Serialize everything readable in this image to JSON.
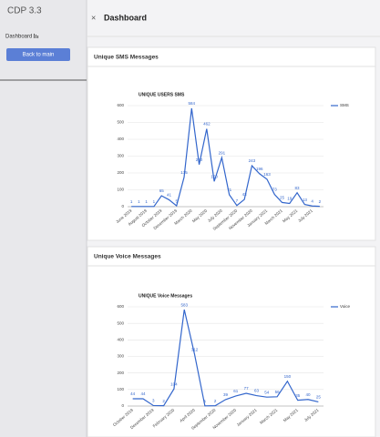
{
  "sidebar": {
    "app_title": "CDP 3.3",
    "nav_item": "Dashboard",
    "button": "Back to main"
  },
  "header": {
    "title": "Dashboard"
  },
  "panels": [
    "Unique SMS Messages",
    "Unique Voice Messages"
  ],
  "chart_data": [
    {
      "type": "line",
      "title": "UNIQUE USERS SMS",
      "categories": [
        "June 2019",
        null,
        "August 2019",
        null,
        "October 2019",
        null,
        "December 2019",
        null,
        "March 2020",
        null,
        "May 2020",
        null,
        "July 2020",
        null,
        "September 2020",
        null,
        "November 2020",
        null,
        "January 2021",
        null,
        "March 2021",
        null,
        "May 2021",
        null,
        "July 2021",
        null
      ],
      "series": [
        {
          "name": "SMS",
          "color": "#3366cc",
          "values": [
            1,
            1,
            1,
            1,
            65,
            41,
            5,
            175,
            584,
            250,
            462,
            150,
            291,
            71,
            7,
            43,
            243,
            196,
            163,
            73,
            25,
            19,
            83,
            13,
            4,
            2
          ]
        }
      ],
      "ylim": [
        0,
        600
      ],
      "yticks": [
        0,
        100,
        200,
        300,
        400,
        500,
        600
      ],
      "grid": true,
      "legend": "right"
    },
    {
      "type": "line",
      "title": "UNIQUE Voice Messages",
      "categories": [
        "October 2019",
        null,
        "December 2019",
        null,
        "February 2020",
        null,
        "April 2020",
        null,
        "September 2020",
        null,
        "November 2020",
        null,
        "January 2021",
        null,
        "March 2021",
        null,
        "May 2021",
        null,
        "July 2021"
      ],
      "series": [
        {
          "name": "Voice",
          "color": "#3366cc",
          "values": [
            44,
            44,
            3,
            2,
            104,
            583,
            312,
            1,
            2,
            39,
            61,
            77,
            63,
            54,
            56,
            150,
            35,
            40,
            25
          ]
        }
      ],
      "ylim": [
        0,
        600
      ],
      "yticks": [
        0,
        100,
        200,
        300,
        400,
        500,
        600
      ],
      "grid": true,
      "legend": "right"
    }
  ]
}
